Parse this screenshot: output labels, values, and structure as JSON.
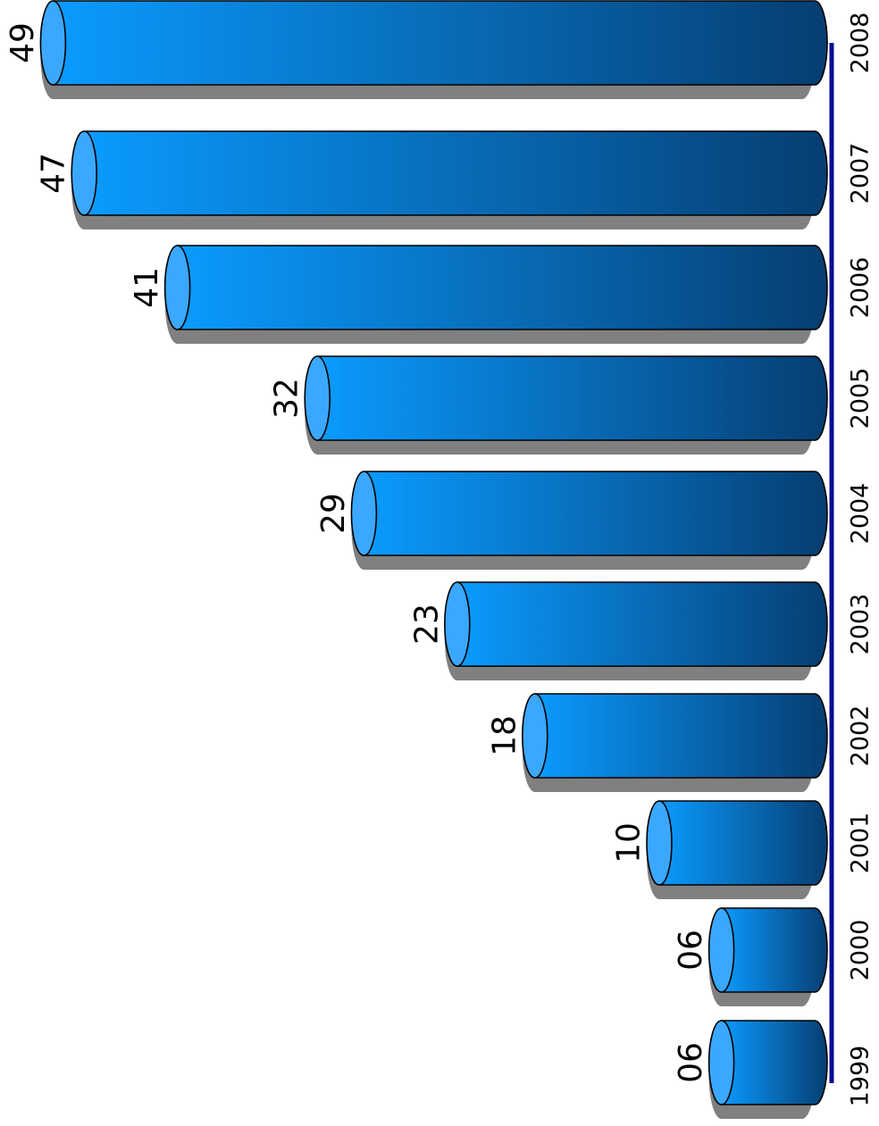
{
  "chart_data": {
    "type": "bar",
    "orientation": "horizontal",
    "categories": [
      "1999",
      "2000",
      "2001",
      "2002",
      "2003",
      "2004",
      "2005",
      "2006",
      "2007",
      "2008"
    ],
    "value_labels": [
      "06",
      "06",
      "10",
      "18",
      "23",
      "29",
      "32",
      "41",
      "47",
      "49"
    ],
    "values": [
      6,
      6,
      10,
      18,
      23,
      29,
      32,
      41,
      47,
      49
    ],
    "title": "",
    "xlabel": "",
    "ylabel": "",
    "legend": "none",
    "grid": false,
    "bar_style": "3d-cylinder",
    "colors": {
      "bar_light": "#0a9bff",
      "bar_dark": "#063e72",
      "cap": "#3aa8ff",
      "shadow": "#808080",
      "axis": "#0a0a96",
      "text": "#000000"
    }
  }
}
